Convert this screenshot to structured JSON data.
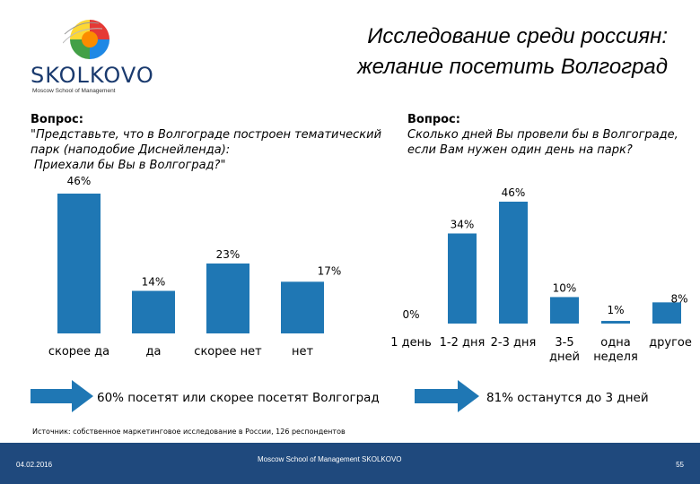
{
  "logo": {
    "name": "SKOLKOVO",
    "subtitle": "Moscow School of Management"
  },
  "title": {
    "line1": "Исследование среди россиян:",
    "line2": "желание посетить Волгоград"
  },
  "left_question": {
    "label": "Вопрос:",
    "line1": "\"Представьте, что в Волгограде построен тематический",
    "line2": "парк (наподобие Диснейленда):",
    "line3": "Приехали бы Вы в Волгоград?\""
  },
  "right_question": {
    "label": "Вопрос:",
    "line1": "Сколько дней Вы провели бы в Волгограде,",
    "line2": "если Вам нужен один день на парк?"
  },
  "chart_data": [
    {
      "type": "bar",
      "categories": [
        "скорее да",
        "да",
        "скорее нет",
        "нет"
      ],
      "values": [
        46,
        14,
        23,
        17
      ],
      "value_labels": [
        "46%",
        "14%",
        "23%",
        "17%"
      ],
      "title": "",
      "xlabel": "",
      "ylabel": "",
      "ylim": [
        0,
        46
      ],
      "grid": false,
      "color": "#1f77b4"
    },
    {
      "type": "bar",
      "categories": [
        "1 день",
        "1-2 дня",
        "2-3 дня",
        "3-5 дней",
        "одна неделя",
        "другое"
      ],
      "values": [
        0,
        34,
        46,
        10,
        1,
        8
      ],
      "value_labels": [
        "0%",
        "34%",
        "46%",
        "10%",
        "1%",
        "8%"
      ],
      "title": "",
      "xlabel": "",
      "ylabel": "",
      "ylim": [
        0,
        46
      ],
      "grid": false,
      "color": "#1f77b4"
    }
  ],
  "conclusions": {
    "left": "60% посетят или скорее посетят Волгоград",
    "right": "81% останутся до 3 дней"
  },
  "source": "Источник: собственное маркетинговое исследование в России, 126 респондентов",
  "footer": {
    "date": "04.02.2016",
    "center": "Moscow School of Management SKOLKOVO",
    "page": "55"
  }
}
